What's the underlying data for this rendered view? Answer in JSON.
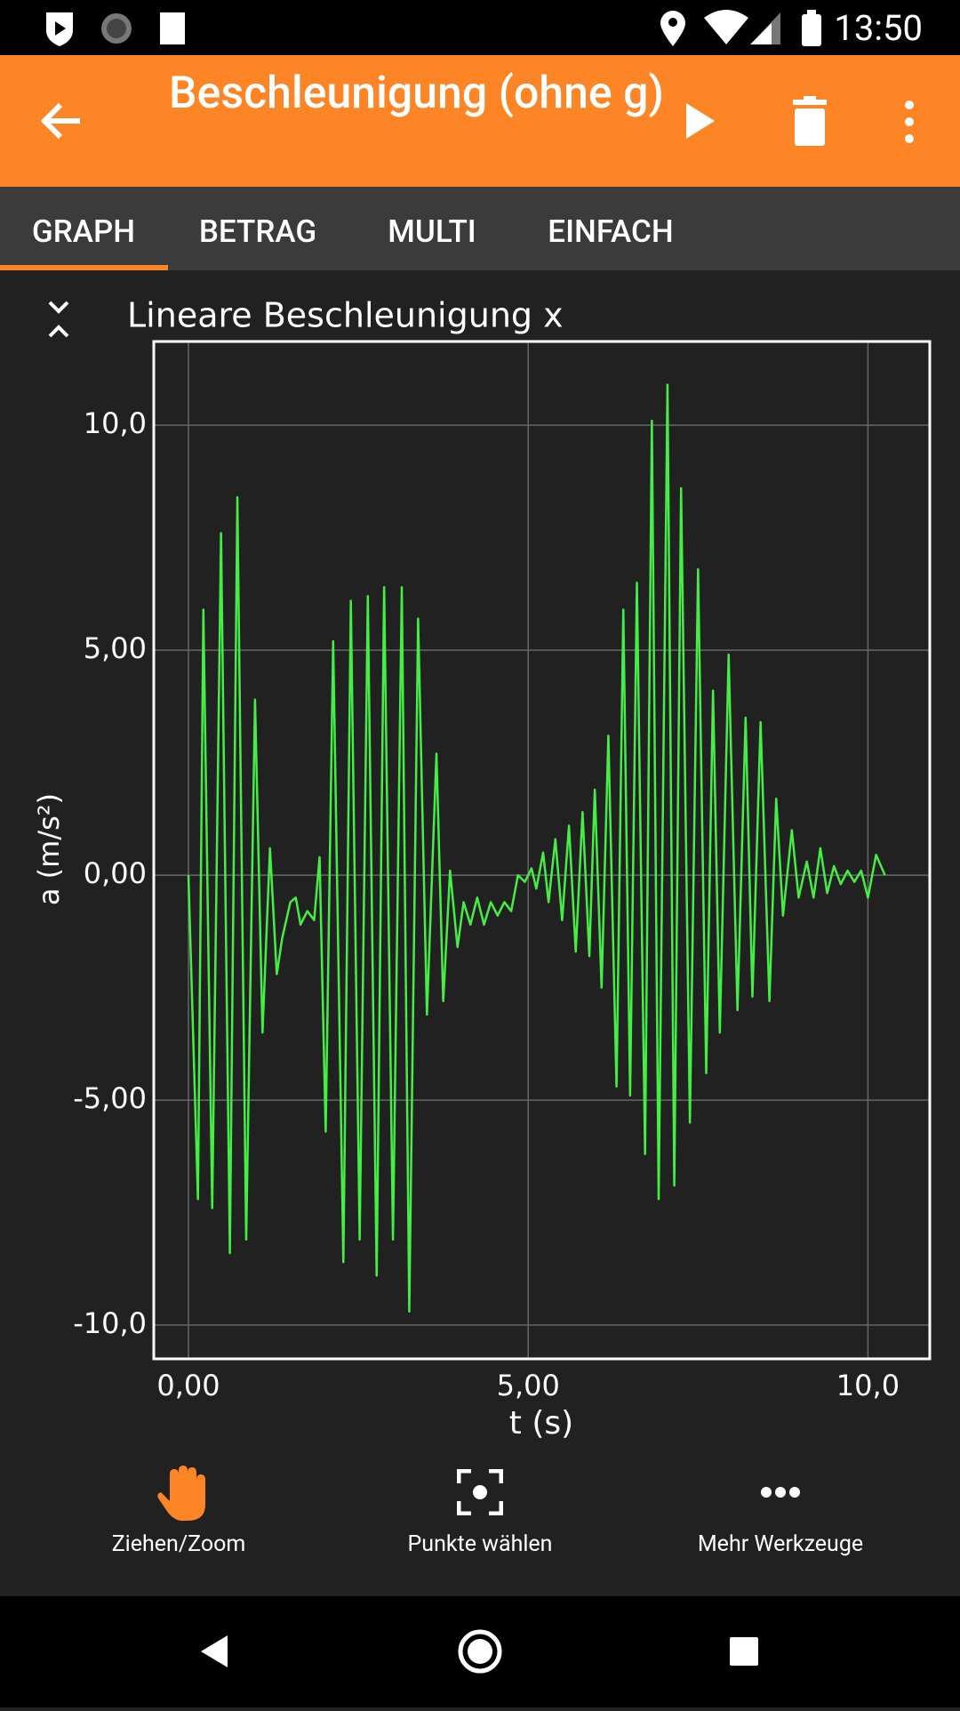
{
  "status_bar": {
    "time": "13:50"
  },
  "toolbar": {
    "title": "Beschleunigung (ohne g)"
  },
  "tabs": [
    "GRAPH",
    "BETRAG",
    "MULTI",
    "EINFACH"
  ],
  "chart_data": {
    "type": "line",
    "title": "Lineare Beschleunigung x",
    "x_label": "t (s)",
    "y_label": "a (m/s²)",
    "color": "#44ee44",
    "grid": true,
    "x": [
      0,
      0.14,
      0.22,
      0.35,
      0.48,
      0.61,
      0.72,
      0.85,
      0.98,
      1.09,
      1.2,
      1.3,
      1.38,
      1.5,
      1.58,
      1.65,
      1.75,
      1.85,
      1.93,
      2.02,
      2.13,
      2.28,
      2.39,
      2.52,
      2.64,
      2.77,
      2.88,
      3.01,
      3.14,
      3.25,
      3.38,
      3.51,
      3.65,
      3.75,
      3.85,
      3.96,
      4.05,
      4.15,
      4.25,
      4.35,
      4.45,
      4.55,
      4.65,
      4.75,
      4.85,
      4.95,
      5.05,
      5.12,
      5.22,
      5.3,
      5.4,
      5.5,
      5.6,
      5.7,
      5.8,
      5.9,
      5.98,
      6.08,
      6.18,
      6.3,
      6.4,
      6.5,
      6.6,
      6.72,
      6.82,
      6.92,
      7.05,
      7.15,
      7.25,
      7.38,
      7.5,
      7.62,
      7.72,
      7.82,
      7.95,
      8.08,
      8.2,
      8.3,
      8.42,
      8.55,
      8.65,
      8.75,
      8.88,
      8.98,
      9.1,
      9.2,
      9.3,
      9.4,
      9.5,
      9.6,
      9.7,
      9.8,
      9.9,
      10.0,
      10.12,
      10.25
    ],
    "values": [
      0,
      -7.2,
      5.9,
      -7.4,
      7.6,
      -8.4,
      8.4,
      -8.1,
      3.9,
      -3.5,
      0.6,
      -2.2,
      -1.4,
      -0.6,
      -0.5,
      -1.1,
      -0.8,
      -1.0,
      0.4,
      -5.7,
      5.2,
      -8.6,
      6.1,
      -8.1,
      6.2,
      -8.9,
      6.4,
      -8.1,
      6.4,
      -9.7,
      5.7,
      -3.1,
      2.7,
      -2.8,
      0.1,
      -1.6,
      -0.6,
      -1.1,
      -0.5,
      -1.1,
      -0.6,
      -0.9,
      -0.6,
      -0.8,
      0,
      -0.15,
      0.15,
      -0.3,
      0.5,
      -0.6,
      0.8,
      -1.0,
      1.1,
      -1.7,
      1.4,
      -1.8,
      1.9,
      -2.5,
      3.1,
      -4.7,
      5.9,
      -4.9,
      6.5,
      -6.2,
      10.1,
      -7.2,
      10.9,
      -6.9,
      8.6,
      -5.5,
      6.8,
      -4.4,
      4.1,
      -3.5,
      4.9,
      -3.0,
      3.5,
      -2.7,
      3.4,
      -2.8,
      1.7,
      -0.9,
      1.0,
      -0.5,
      0.3,
      -0.5,
      0.6,
      -0.4,
      0.2,
      -0.2,
      0.1,
      -0.15,
      0.1,
      -0.5,
      0.45,
      0
    ],
    "xlim": [
      -0.51,
      10.91
    ],
    "xticks": [
      {
        "value": 0,
        "label": "0,00"
      },
      {
        "value": 5,
        "label": "5,00"
      },
      {
        "value": 10,
        "label": "10,0"
      }
    ],
    "ylim": [
      -10.75,
      11.86
    ],
    "yticks": [
      {
        "value": -10,
        "label": "-10,0"
      },
      {
        "value": -5,
        "label": "-5,00"
      },
      {
        "value": 0,
        "label": "0,00"
      },
      {
        "value": 5,
        "label": "5,00"
      },
      {
        "value": 10,
        "label": "10,0"
      }
    ]
  },
  "tools": [
    "Ziehen/Zoom",
    "Punkte wählen",
    "Mehr Werkzeuge"
  ]
}
